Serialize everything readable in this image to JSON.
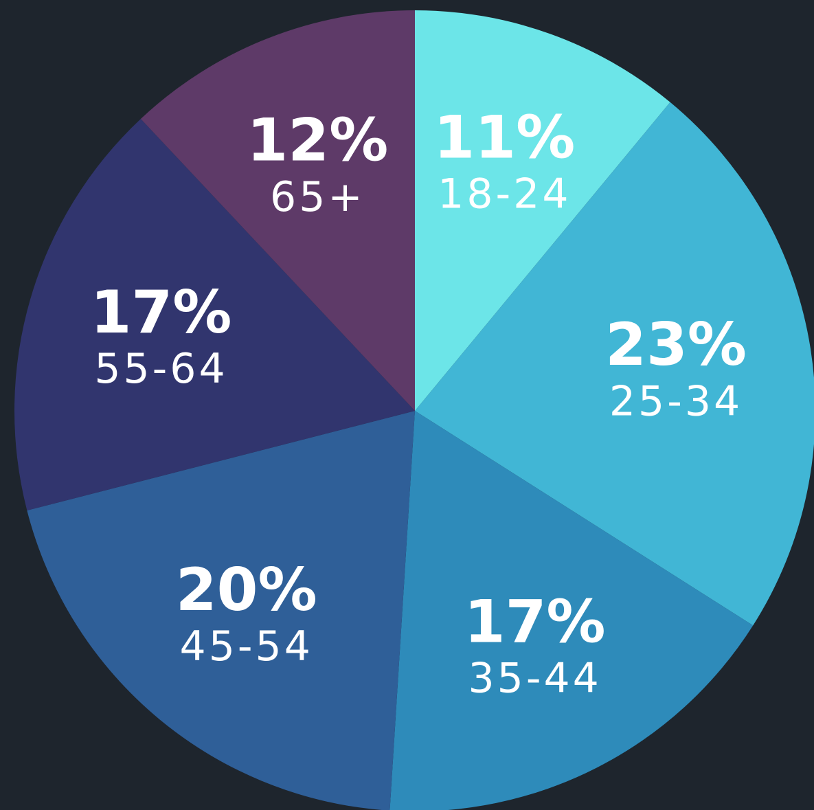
{
  "chart_data": {
    "type": "pie",
    "categories": [
      "18-24",
      "25-34",
      "35-44",
      "45-54",
      "55-64",
      "65+"
    ],
    "values": [
      11,
      23,
      17,
      20,
      17,
      12
    ],
    "value_labels": [
      "11%",
      "23%",
      "17%",
      "20%",
      "17%",
      "12%"
    ],
    "colors": [
      "#6ce5e8",
      "#41b6d5",
      "#2e8bba",
      "#2f5f98",
      "#31356e",
      "#5e3a68"
    ]
  }
}
